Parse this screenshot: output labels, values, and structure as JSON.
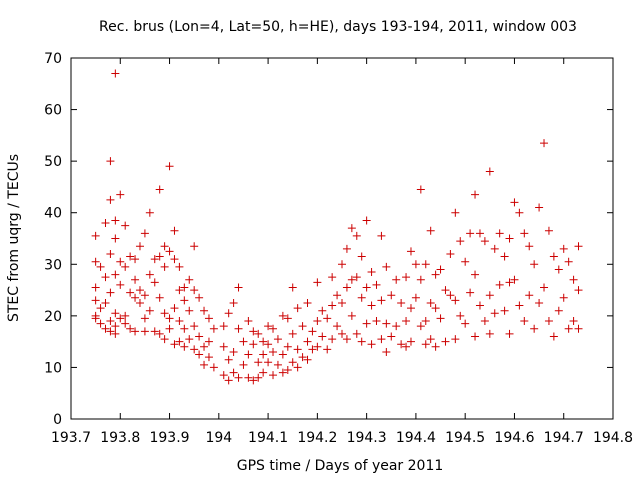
{
  "chart_data": {
    "type": "scatter",
    "title": "Rec. brus (Lon=4, Lat=50, h=HE), days 193-194, 2011, window 003",
    "xlabel": "GPS time / Days of year 2011",
    "ylabel": "STEC from uqrg / TECUs",
    "xlim": [
      193.7,
      194.8
    ],
    "ylim": [
      0,
      70
    ],
    "x_ticks": [
      "193.7",
      "193.8",
      "193.9",
      "194",
      "194.1",
      "194.2",
      "194.3",
      "194.4",
      "194.5",
      "194.6",
      "194.7",
      "194.8"
    ],
    "y_ticks": [
      "0",
      "10",
      "20",
      "30",
      "40",
      "50",
      "60",
      "70"
    ],
    "grid": false,
    "legend": "none",
    "marker": "+",
    "marker_color": "#cc0000",
    "series": [
      {
        "points": [
          [
            193.75,
            35.5
          ],
          [
            193.75,
            30.5
          ],
          [
            193.76,
            29.5
          ],
          [
            193.75,
            25.5
          ],
          [
            193.75,
            23.0
          ],
          [
            193.75,
            20.0
          ],
          [
            193.75,
            19.5
          ],
          [
            193.76,
            21.5
          ],
          [
            193.76,
            18.5
          ],
          [
            193.77,
            38.0
          ],
          [
            193.77,
            27.5
          ],
          [
            193.77,
            22.5
          ],
          [
            193.77,
            17.5
          ],
          [
            193.78,
            50.0
          ],
          [
            193.78,
            42.5
          ],
          [
            193.78,
            32.0
          ],
          [
            193.78,
            24.5
          ],
          [
            193.78,
            19.0
          ],
          [
            193.78,
            17.0
          ],
          [
            193.79,
            67.0
          ],
          [
            193.79,
            38.5
          ],
          [
            193.79,
            35.0
          ],
          [
            193.79,
            28.0
          ],
          [
            193.79,
            20.5
          ],
          [
            193.79,
            18.0
          ],
          [
            193.79,
            16.5
          ],
          [
            193.8,
            43.5
          ],
          [
            193.8,
            30.5
          ],
          [
            193.8,
            26.0
          ],
          [
            193.8,
            19.5
          ],
          [
            193.81,
            37.5
          ],
          [
            193.81,
            29.5
          ],
          [
            193.81,
            20.0
          ],
          [
            193.81,
            18.5
          ],
          [
            193.82,
            31.5
          ],
          [
            193.82,
            24.5
          ],
          [
            193.82,
            17.5
          ],
          [
            193.83,
            31.0
          ],
          [
            193.83,
            27.0
          ],
          [
            193.83,
            23.5
          ],
          [
            193.83,
            17.0
          ],
          [
            193.84,
            33.5
          ],
          [
            193.84,
            25.0
          ],
          [
            193.84,
            22.5
          ],
          [
            193.85,
            36.0
          ],
          [
            193.85,
            24.0
          ],
          [
            193.85,
            19.5
          ],
          [
            193.85,
            17.0
          ],
          [
            193.86,
            40.0
          ],
          [
            193.86,
            28.0
          ],
          [
            193.86,
            21.0
          ],
          [
            193.87,
            31.0
          ],
          [
            193.87,
            26.5
          ],
          [
            193.87,
            17.0
          ],
          [
            193.88,
            44.5
          ],
          [
            193.88,
            31.5
          ],
          [
            193.88,
            23.5
          ],
          [
            193.88,
            16.5
          ],
          [
            193.89,
            33.5
          ],
          [
            193.89,
            29.5
          ],
          [
            193.89,
            20.5
          ],
          [
            193.89,
            15.5
          ],
          [
            193.9,
            49.0
          ],
          [
            193.9,
            32.5
          ],
          [
            193.9,
            19.5
          ],
          [
            193.9,
            17.5
          ],
          [
            193.91,
            36.5
          ],
          [
            193.91,
            31.0
          ],
          [
            193.91,
            21.5
          ],
          [
            193.91,
            14.5
          ],
          [
            193.92,
            29.5
          ],
          [
            193.92,
            25.0
          ],
          [
            193.92,
            19.0
          ],
          [
            193.92,
            15.0
          ],
          [
            193.93,
            25.5
          ],
          [
            193.93,
            23.0
          ],
          [
            193.93,
            17.5
          ],
          [
            193.93,
            14.0
          ],
          [
            193.94,
            27.0
          ],
          [
            193.94,
            21.0
          ],
          [
            193.94,
            15.5
          ],
          [
            193.95,
            33.5
          ],
          [
            193.95,
            25.0
          ],
          [
            193.95,
            18.0
          ],
          [
            193.95,
            13.5
          ],
          [
            193.96,
            23.5
          ],
          [
            193.96,
            16.0
          ],
          [
            193.96,
            12.5
          ],
          [
            193.97,
            21.0
          ],
          [
            193.97,
            14.0
          ],
          [
            193.97,
            10.5
          ],
          [
            193.98,
            19.5
          ],
          [
            193.98,
            15.0
          ],
          [
            193.98,
            12.0
          ],
          [
            193.99,
            17.5
          ],
          [
            193.99,
            10.0
          ],
          [
            194.01,
            18.0
          ],
          [
            194.01,
            14.0
          ],
          [
            194.01,
            8.5
          ],
          [
            194.02,
            20.5
          ],
          [
            194.02,
            11.5
          ],
          [
            194.02,
            7.5
          ],
          [
            194.03,
            22.5
          ],
          [
            194.03,
            13.0
          ],
          [
            194.03,
            9.0
          ],
          [
            194.04,
            25.5
          ],
          [
            194.04,
            17.5
          ],
          [
            194.04,
            8.0
          ],
          [
            194.05,
            15.0
          ],
          [
            194.05,
            10.5
          ],
          [
            194.06,
            19.0
          ],
          [
            194.06,
            12.5
          ],
          [
            194.06,
            8.0
          ],
          [
            194.07,
            17.0
          ],
          [
            194.07,
            14.5
          ],
          [
            194.07,
            7.5
          ],
          [
            194.08,
            16.5
          ],
          [
            194.08,
            11.0
          ],
          [
            194.08,
            8.0
          ],
          [
            194.09,
            15.0
          ],
          [
            194.09,
            12.5
          ],
          [
            194.09,
            9.0
          ],
          [
            194.1,
            18.0
          ],
          [
            194.1,
            14.5
          ],
          [
            194.1,
            11.0
          ],
          [
            194.11,
            17.5
          ],
          [
            194.11,
            13.0
          ],
          [
            194.11,
            8.5
          ],
          [
            194.12,
            15.5
          ],
          [
            194.12,
            10.5
          ],
          [
            194.13,
            20.0
          ],
          [
            194.13,
            12.5
          ],
          [
            194.13,
            9.0
          ],
          [
            194.14,
            19.5
          ],
          [
            194.14,
            14.0
          ],
          [
            194.14,
            9.5
          ],
          [
            194.15,
            25.5
          ],
          [
            194.15,
            16.5
          ],
          [
            194.15,
            11.0
          ],
          [
            194.16,
            21.5
          ],
          [
            194.16,
            13.5
          ],
          [
            194.16,
            10.0
          ],
          [
            194.17,
            18.0
          ],
          [
            194.17,
            12.0
          ],
          [
            194.18,
            22.5
          ],
          [
            194.18,
            15.0
          ],
          [
            194.18,
            11.5
          ],
          [
            194.19,
            17.0
          ],
          [
            194.19,
            13.5
          ],
          [
            194.2,
            26.5
          ],
          [
            194.2,
            19.0
          ],
          [
            194.2,
            14.0
          ],
          [
            194.21,
            21.0
          ],
          [
            194.21,
            16.0
          ],
          [
            194.22,
            19.5
          ],
          [
            194.22,
            13.5
          ],
          [
            194.23,
            27.5
          ],
          [
            194.23,
            22.0
          ],
          [
            194.23,
            15.5
          ],
          [
            194.24,
            24.0
          ],
          [
            194.24,
            18.0
          ],
          [
            194.25,
            30.0
          ],
          [
            194.25,
            22.5
          ],
          [
            194.25,
            16.5
          ],
          [
            194.26,
            33.0
          ],
          [
            194.26,
            25.5
          ],
          [
            194.26,
            15.5
          ],
          [
            194.27,
            37.0
          ],
          [
            194.27,
            27.0
          ],
          [
            194.27,
            20.0
          ],
          [
            194.28,
            35.5
          ],
          [
            194.28,
            27.5
          ],
          [
            194.28,
            16.5
          ],
          [
            194.29,
            31.5
          ],
          [
            194.29,
            23.5
          ],
          [
            194.29,
            15.0
          ],
          [
            194.3,
            38.5
          ],
          [
            194.3,
            25.5
          ],
          [
            194.3,
            18.5
          ],
          [
            194.31,
            28.5
          ],
          [
            194.31,
            22.0
          ],
          [
            194.31,
            14.5
          ],
          [
            194.32,
            26.0
          ],
          [
            194.32,
            19.0
          ],
          [
            194.33,
            35.5
          ],
          [
            194.33,
            23.0
          ],
          [
            194.33,
            15.5
          ],
          [
            194.34,
            29.5
          ],
          [
            194.34,
            18.5
          ],
          [
            194.34,
            13.0
          ],
          [
            194.35,
            24.0
          ],
          [
            194.35,
            16.0
          ],
          [
            194.36,
            27.0
          ],
          [
            194.36,
            18.0
          ],
          [
            194.37,
            22.5
          ],
          [
            194.37,
            14.5
          ],
          [
            194.38,
            27.5
          ],
          [
            194.38,
            19.0
          ],
          [
            194.38,
            14.0
          ],
          [
            194.39,
            32.5
          ],
          [
            194.39,
            21.5
          ],
          [
            194.39,
            15.0
          ],
          [
            194.4,
            30.0
          ],
          [
            194.4,
            23.5
          ],
          [
            194.41,
            44.5
          ],
          [
            194.41,
            27.0
          ],
          [
            194.41,
            18.0
          ],
          [
            194.42,
            30.0
          ],
          [
            194.42,
            19.0
          ],
          [
            194.42,
            14.5
          ],
          [
            194.43,
            36.5
          ],
          [
            194.43,
            22.5
          ],
          [
            194.43,
            15.5
          ],
          [
            194.44,
            28.0
          ],
          [
            194.44,
            21.5
          ],
          [
            194.44,
            14.0
          ],
          [
            194.45,
            29.0
          ],
          [
            194.45,
            19.5
          ],
          [
            194.46,
            25.0
          ],
          [
            194.46,
            15.0
          ],
          [
            194.47,
            32.0
          ],
          [
            194.47,
            24.0
          ],
          [
            194.48,
            40.0
          ],
          [
            194.48,
            23.0
          ],
          [
            194.48,
            15.5
          ],
          [
            194.49,
            34.5
          ],
          [
            194.49,
            20.0
          ],
          [
            194.5,
            30.5
          ],
          [
            194.5,
            18.5
          ],
          [
            194.51,
            36.0
          ],
          [
            194.51,
            24.5
          ],
          [
            194.52,
            43.5
          ],
          [
            194.52,
            28.0
          ],
          [
            194.52,
            16.0
          ],
          [
            194.53,
            36.0
          ],
          [
            194.53,
            22.0
          ],
          [
            194.54,
            34.5
          ],
          [
            194.54,
            19.0
          ],
          [
            194.55,
            48.0
          ],
          [
            194.55,
            24.0
          ],
          [
            194.55,
            16.5
          ],
          [
            194.56,
            33.0
          ],
          [
            194.56,
            20.5
          ],
          [
            194.57,
            36.0
          ],
          [
            194.57,
            26.0
          ],
          [
            194.58,
            31.5
          ],
          [
            194.58,
            21.0
          ],
          [
            194.59,
            35.0
          ],
          [
            194.59,
            26.5
          ],
          [
            194.59,
            16.5
          ],
          [
            194.6,
            42.0
          ],
          [
            194.6,
            27.0
          ],
          [
            194.61,
            40.0
          ],
          [
            194.61,
            22.0
          ],
          [
            194.62,
            36.0
          ],
          [
            194.62,
            19.0
          ],
          [
            194.63,
            33.5
          ],
          [
            194.63,
            24.0
          ],
          [
            194.64,
            30.0
          ],
          [
            194.64,
            17.5
          ],
          [
            194.65,
            41.0
          ],
          [
            194.65,
            22.5
          ],
          [
            194.66,
            53.5
          ],
          [
            194.66,
            25.5
          ],
          [
            194.67,
            36.5
          ],
          [
            194.67,
            19.0
          ],
          [
            194.68,
            31.5
          ],
          [
            194.68,
            16.0
          ],
          [
            194.69,
            29.0
          ],
          [
            194.69,
            21.0
          ],
          [
            194.7,
            33.0
          ],
          [
            194.7,
            23.5
          ],
          [
            194.71,
            30.5
          ],
          [
            194.71,
            17.5
          ],
          [
            194.72,
            27.0
          ],
          [
            194.72,
            19.0
          ],
          [
            194.73,
            33.5
          ],
          [
            194.73,
            25.0
          ],
          [
            194.73,
            17.5
          ]
        ]
      }
    ]
  }
}
